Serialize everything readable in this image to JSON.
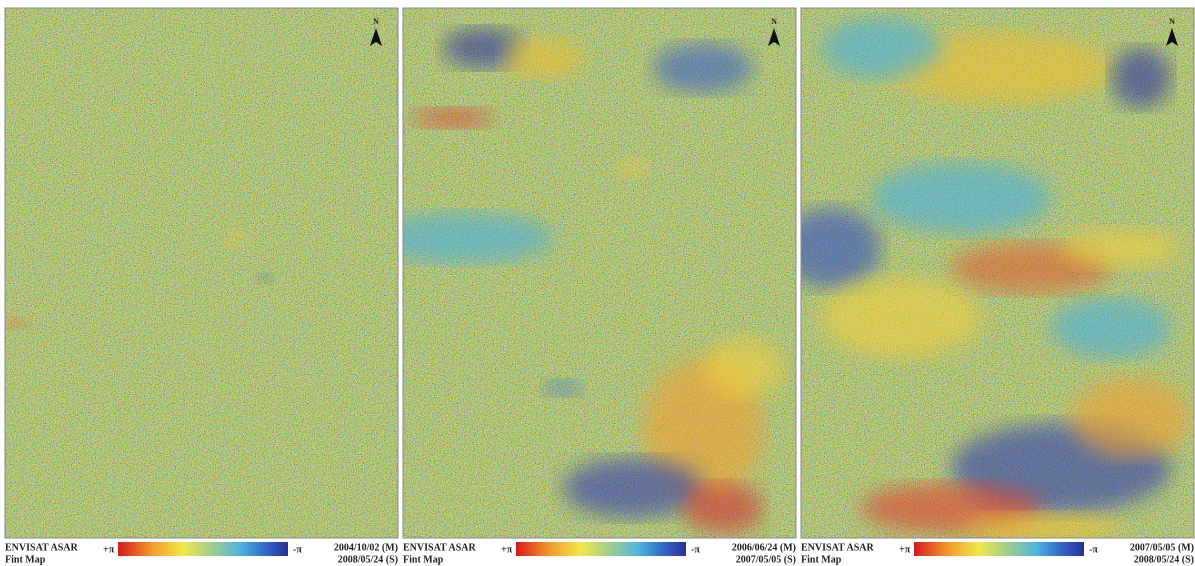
{
  "panels": [
    {
      "north": "N",
      "sensor": "ENVISAT ASAR",
      "product": "Fint Map",
      "scale_max": "+π",
      "scale_min": "-π",
      "master_date": "2004/10/02 (M)",
      "slave_date": "2008/05/24 (S)"
    },
    {
      "north": "N",
      "sensor": "ENVISAT ASAR",
      "product": "Fint Map",
      "scale_max": "+π",
      "scale_min": "-π",
      "master_date": "2006/06/24 (M)",
      "slave_date": "2007/05/05 (S)"
    },
    {
      "north": "N",
      "sensor": "ENVISAT ASAR",
      "product": "Fint Map",
      "scale_max": "+π",
      "scale_min": "-π",
      "master_date": "2007/05/05 (M)",
      "slave_date": "2008/05/24 (S)"
    }
  ]
}
